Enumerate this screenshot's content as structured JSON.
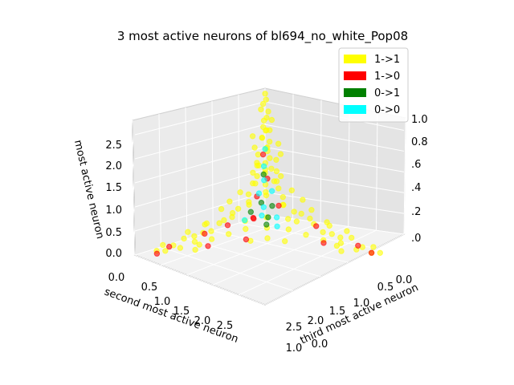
{
  "chart_data": {
    "type": "scatter",
    "title": "3 most active neurons of bl694_no_white_Pop08",
    "zlabel": "most active neuron",
    "xlabel": "second most active neuron",
    "ylabel": "third most active neuron",
    "z_ticks": [
      "0.0",
      "0.5",
      "1.0",
      "1.5",
      "2.0",
      "2.5"
    ],
    "x_ticks": [
      "0.0",
      "0.5",
      "1.0",
      "1.5",
      "2.0",
      "2.5"
    ],
    "y_ticks": [
      "0.0",
      "0.5",
      "1.0",
      "1.5",
      "2.0",
      "2.5"
    ],
    "right_axis_ticks": [
      ".0",
      ".2",
      ".4",
      ".6",
      "0.8",
      "1.0"
    ],
    "bottom_overlap_ticks": [
      "1.0",
      "0.0"
    ],
    "grid": true,
    "legend_placement": "top-right",
    "legend": [
      {
        "label": "1->1",
        "color": "#ffff00"
      },
      {
        "label": "1->0",
        "color": "#ff0000"
      },
      {
        "label": "0->1",
        "color": "#008000"
      },
      {
        "label": "0->0",
        "color": "#00ffff"
      }
    ],
    "series": [
      {
        "name": "1->1",
        "color": "#ffff00",
        "points": [
          [
            0.05,
            0.05,
            2.55
          ],
          [
            0.08,
            0.1,
            2.45
          ],
          [
            0.1,
            0.05,
            2.35
          ],
          [
            0.05,
            0.12,
            2.2
          ],
          [
            0.12,
            0.15,
            2.1
          ],
          [
            0.08,
            0.05,
            2.0
          ],
          [
            0.15,
            0.1,
            1.9
          ],
          [
            0.1,
            0.2,
            1.85
          ],
          [
            0.05,
            0.08,
            1.8
          ],
          [
            0.2,
            0.12,
            1.7
          ],
          [
            0.12,
            0.05,
            1.65
          ],
          [
            0.08,
            0.18,
            1.6
          ],
          [
            0.18,
            0.2,
            1.5
          ],
          [
            0.05,
            0.1,
            1.45
          ],
          [
            0.1,
            0.15,
            1.4
          ],
          [
            0.25,
            0.08,
            1.35
          ],
          [
            0.15,
            0.25,
            1.3
          ],
          [
            0.05,
            0.3,
            1.25
          ],
          [
            0.3,
            0.1,
            1.2
          ],
          [
            0.12,
            0.12,
            1.15
          ],
          [
            0.2,
            0.05,
            1.1
          ],
          [
            0.08,
            0.22,
            1.05
          ],
          [
            0.1,
            0.1,
            1.0
          ],
          [
            0.35,
            0.15,
            0.95
          ],
          [
            0.05,
            0.05,
            0.9
          ],
          [
            0.15,
            0.35,
            0.85
          ],
          [
            0.4,
            0.1,
            0.8
          ],
          [
            0.2,
            0.2,
            0.75
          ],
          [
            0.1,
            0.4,
            0.7
          ],
          [
            0.3,
            0.3,
            0.65
          ],
          [
            0.5,
            0.1,
            0.6
          ],
          [
            0.1,
            0.5,
            0.55
          ],
          [
            0.6,
            0.2,
            0.5
          ],
          [
            0.2,
            0.6,
            0.45
          ],
          [
            0.8,
            0.15,
            0.4
          ],
          [
            0.15,
            0.8,
            0.35
          ],
          [
            1.0,
            0.2,
            0.3
          ],
          [
            0.3,
            1.0,
            0.25
          ],
          [
            1.2,
            0.1,
            0.2
          ],
          [
            0.1,
            1.2,
            0.2
          ],
          [
            1.5,
            0.2,
            0.15
          ],
          [
            0.2,
            1.5,
            0.15
          ],
          [
            1.8,
            0.1,
            0.1
          ],
          [
            0.1,
            1.8,
            0.1
          ],
          [
            2.0,
            0.3,
            0.1
          ],
          [
            0.3,
            2.0,
            0.1
          ],
          [
            2.3,
            0.1,
            0.05
          ],
          [
            0.1,
            2.3,
            0.05
          ],
          [
            2.6,
            0.2,
            0.05
          ],
          [
            0.2,
            2.6,
            0.05
          ],
          [
            0.6,
            0.6,
            0.3
          ],
          [
            0.9,
            0.4,
            0.25
          ],
          [
            0.4,
            0.9,
            0.3
          ],
          [
            1.1,
            0.6,
            0.2
          ],
          [
            0.6,
            1.1,
            0.2
          ],
          [
            1.4,
            0.5,
            0.15
          ],
          [
            0.5,
            1.4,
            0.15
          ],
          [
            0.8,
            0.8,
            0.2
          ],
          [
            1.7,
            0.4,
            0.1
          ],
          [
            0.4,
            1.7,
            0.1
          ],
          [
            2.2,
            0.5,
            0.05
          ],
          [
            0.5,
            2.2,
            0.05
          ],
          [
            0.3,
            0.05,
            1.5
          ],
          [
            0.05,
            0.35,
            1.6
          ],
          [
            0.4,
            0.2,
            1.2
          ],
          [
            0.2,
            0.45,
            1.1
          ],
          [
            0.55,
            0.3,
            0.9
          ],
          [
            0.3,
            0.55,
            0.95
          ],
          [
            0.7,
            0.1,
            0.7
          ],
          [
            0.1,
            0.7,
            0.75
          ],
          [
            0.9,
            0.05,
            0.55
          ],
          [
            0.05,
            0.9,
            0.6
          ],
          [
            1.3,
            0.3,
            0.35
          ],
          [
            0.3,
            1.3,
            0.4
          ],
          [
            1.6,
            0.15,
            0.3
          ],
          [
            0.15,
            1.6,
            0.3
          ],
          [
            1.9,
            0.05,
            0.2
          ],
          [
            0.05,
            1.9,
            0.25
          ],
          [
            2.1,
            0.15,
            0.15
          ],
          [
            0.15,
            2.1,
            0.2
          ],
          [
            2.4,
            0.35,
            0.1
          ],
          [
            0.35,
            2.4,
            0.1
          ],
          [
            1.0,
            1.0,
            0.1
          ],
          [
            1.3,
            0.9,
            0.1
          ],
          [
            0.9,
            1.3,
            0.1
          ],
          [
            0.7,
            0.3,
            0.5
          ],
          [
            0.3,
            0.7,
            0.5
          ],
          [
            0.5,
            0.5,
            0.7
          ],
          [
            1.2,
            0.4,
            0.5
          ],
          [
            0.4,
            1.2,
            0.5
          ],
          [
            0.25,
            0.25,
            1.9
          ],
          [
            0.15,
            0.05,
            2.25
          ],
          [
            0.05,
            0.2,
            2.05
          ],
          [
            0.35,
            0.05,
            1.75
          ],
          [
            0.05,
            0.4,
            1.4
          ],
          [
            0.45,
            0.15,
            1.05
          ],
          [
            0.15,
            0.5,
            1.0
          ],
          [
            1.1,
            0.05,
            0.45
          ],
          [
            0.05,
            1.1,
            0.45
          ],
          [
            1.45,
            0.05,
            0.25
          ],
          [
            0.05,
            1.45,
            0.3
          ],
          [
            1.75,
            0.25,
            0.2
          ],
          [
            0.25,
            1.75,
            0.2
          ],
          [
            2.05,
            0.45,
            0.1
          ],
          [
            0.45,
            2.05,
            0.1
          ],
          [
            2.5,
            0.05,
            0.1
          ],
          [
            0.05,
            2.5,
            0.1
          ],
          [
            2.7,
            0.1,
            0.05
          ],
          [
            0.1,
            2.7,
            0.05
          ]
        ]
      },
      {
        "name": "1->0",
        "color": "#ff0000",
        "points": [
          [
            0.1,
            0.05,
            1.3
          ],
          [
            0.05,
            0.1,
            0.8
          ],
          [
            0.3,
            0.1,
            0.5
          ],
          [
            0.6,
            0.3,
            0.2
          ],
          [
            1.0,
            0.1,
            0.1
          ],
          [
            1.5,
            0.05,
            0.05
          ],
          [
            2.4,
            0.1,
            0.05
          ],
          [
            2.8,
            0.2,
            0.05
          ],
          [
            0.1,
            2.2,
            0.05
          ],
          [
            0.2,
            2.6,
            0.05
          ],
          [
            0.5,
            1.8,
            0.1
          ],
          [
            1.3,
            0.8,
            0.1
          ],
          [
            0.8,
            0.5,
            0.3
          ],
          [
            0.2,
            0.5,
            0.4
          ],
          [
            0.15,
            1.3,
            0.2
          ],
          [
            2.0,
            0.6,
            0.1
          ]
        ]
      },
      {
        "name": "0->1",
        "color": "#008000",
        "points": [
          [
            0.12,
            0.08,
            0.9
          ],
          [
            0.3,
            0.2,
            0.4
          ],
          [
            0.2,
            0.35,
            0.35
          ],
          [
            0.5,
            0.15,
            0.25
          ],
          [
            0.4,
            0.45,
            0.2
          ],
          [
            0.6,
            0.6,
            0.15
          ]
        ]
      },
      {
        "name": "0->0",
        "color": "#00ffff",
        "points": [
          [
            0.05,
            0.05,
            1.4
          ],
          [
            0.08,
            0.05,
            1.05
          ],
          [
            0.15,
            0.12,
            0.8
          ],
          [
            0.1,
            0.25,
            0.6
          ],
          [
            0.25,
            0.1,
            0.55
          ],
          [
            0.35,
            0.3,
            0.35
          ],
          [
            0.5,
            0.4,
            0.25
          ],
          [
            0.3,
            0.55,
            0.2
          ],
          [
            0.7,
            0.2,
            0.15
          ],
          [
            0.45,
            0.7,
            0.1
          ]
        ]
      }
    ]
  }
}
